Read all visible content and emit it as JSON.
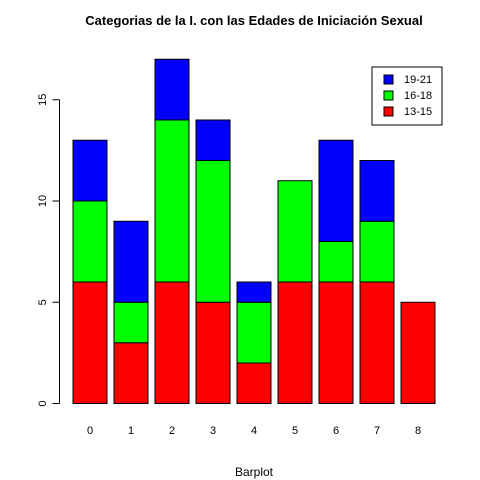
{
  "chart_data": {
    "type": "bar",
    "stacked": true,
    "title": "Categorias de la I. con las Edades de Iniciación Sexual",
    "xlabel": "Barplot",
    "ylabel": "",
    "categories": [
      "0",
      "1",
      "2",
      "3",
      "4",
      "5",
      "6",
      "7",
      "8"
    ],
    "series": [
      {
        "name": "13-15",
        "color": "#ff0000",
        "values": [
          6,
          3,
          6,
          5,
          2,
          6,
          6,
          6,
          5
        ]
      },
      {
        "name": "16-18",
        "color": "#00ff00",
        "values": [
          4,
          2,
          8,
          7,
          3,
          5,
          2,
          3,
          0
        ]
      },
      {
        "name": "19-21",
        "color": "#0000ff",
        "values": [
          3,
          4,
          3,
          2,
          1,
          0,
          5,
          3,
          0
        ]
      }
    ],
    "ylim": [
      0,
      17
    ],
    "yticks": [
      "0",
      "5",
      "10",
      "15"
    ],
    "grid": false,
    "legend_position": "top-right",
    "legend_order": [
      "19-21",
      "16-18",
      "13-15"
    ]
  }
}
